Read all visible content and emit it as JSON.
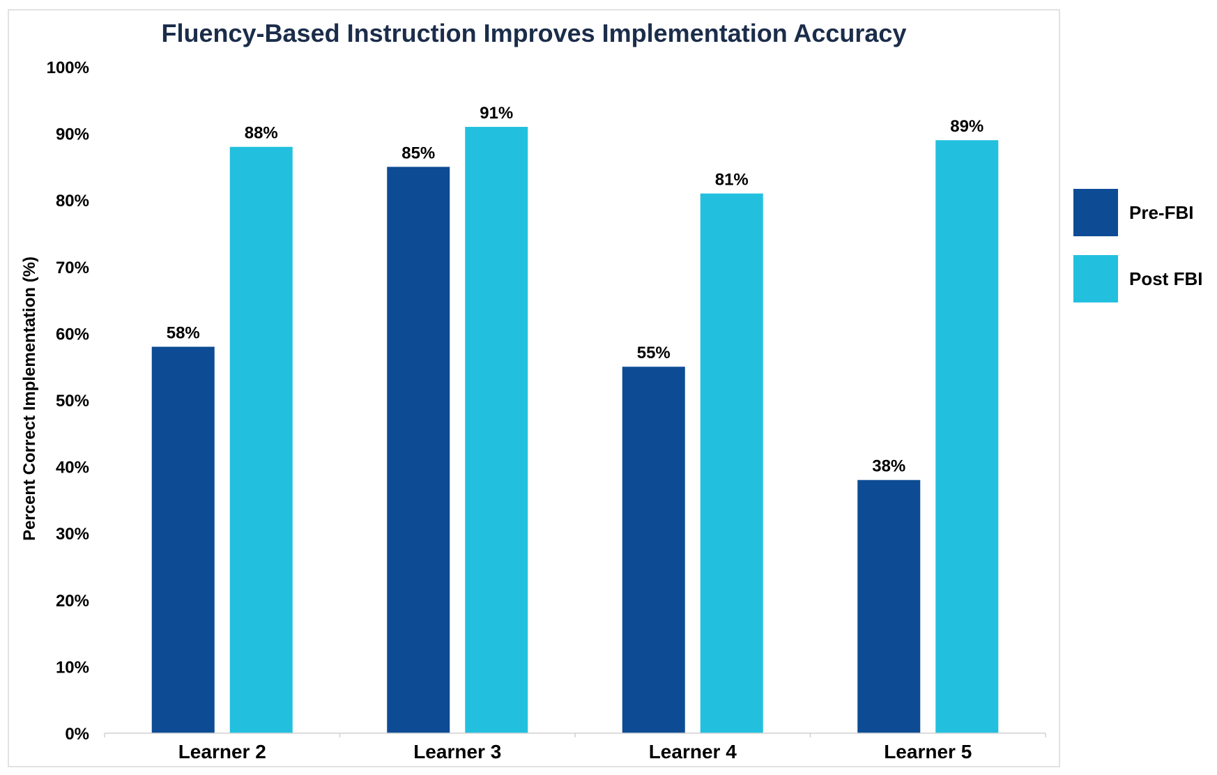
{
  "chart_data": {
    "type": "bar",
    "title": "Fluency-Based Instruction Improves Implementation Accuracy",
    "xlabel": "",
    "ylabel": "Percent Correct Implementation (%)",
    "categories": [
      "Learner 2",
      "Learner 3",
      "Learner 4",
      "Learner 5"
    ],
    "series": [
      {
        "name": "Pre-FBI",
        "color": "#0d4c94",
        "values": [
          58,
          85,
          55,
          38
        ],
        "labels": [
          "58%",
          "85%",
          "55%",
          "38%"
        ]
      },
      {
        "name": "Post FBI",
        "color": "#22c0de",
        "values": [
          88,
          91,
          81,
          89
        ],
        "labels": [
          "88%",
          "91%",
          "81%",
          "89%"
        ]
      }
    ],
    "ylim": [
      0,
      100
    ],
    "yticks": [
      0,
      10,
      20,
      30,
      40,
      50,
      60,
      70,
      80,
      90,
      100
    ],
    "ytick_labels": [
      "0%",
      "10%",
      "20%",
      "30%",
      "40%",
      "50%",
      "60%",
      "70%",
      "80%",
      "90%",
      "100%"
    ],
    "grid": false,
    "legend": "right"
  }
}
